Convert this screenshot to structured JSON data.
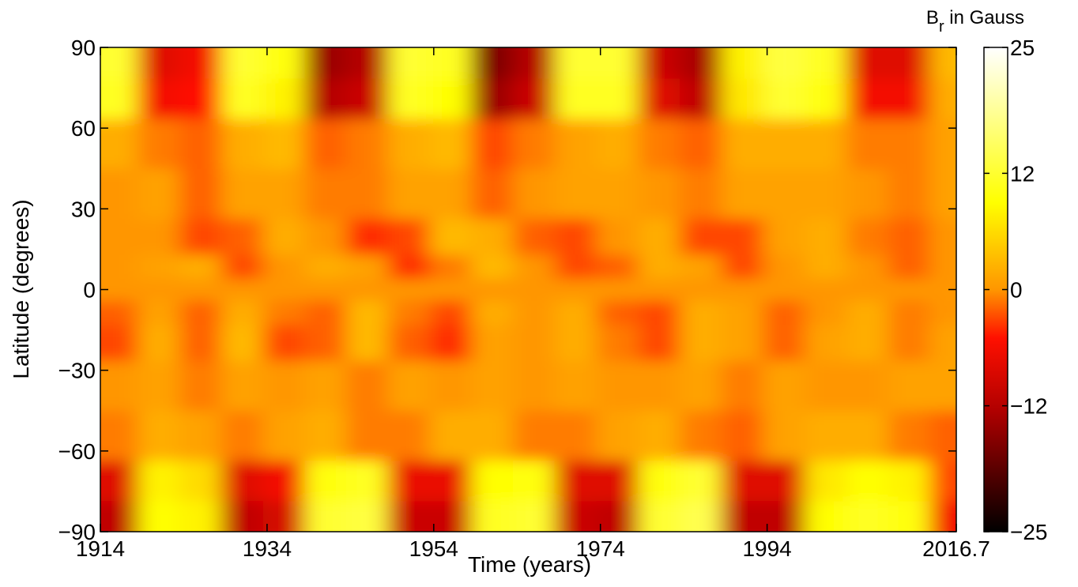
{
  "chart_data": {
    "type": "heatmap",
    "x_label": "Time (years)",
    "y_label": "Latitude (degrees)",
    "colorbar_label": {
      "base": "B",
      "sub": "r",
      "rest": " in Gauss"
    },
    "colormap": "hot",
    "x": [
      1916,
      1921,
      1926,
      1931,
      1936,
      1941,
      1946,
      1951,
      1956,
      1961,
      1966,
      1971,
      1976,
      1981,
      1986,
      1991,
      1996,
      2001,
      2006,
      2011,
      2016
    ],
    "y": [
      -85,
      -72,
      -55,
      -35,
      -18,
      -8,
      0,
      8,
      18,
      35,
      55,
      72,
      85
    ],
    "z": [
      [
        -11,
        9,
        8,
        -11,
        -9,
        12,
        13,
        -10,
        -10,
        11,
        12,
        -10,
        -11,
        12,
        14,
        -11,
        -11,
        9,
        11,
        10,
        -6
      ],
      [
        -8,
        8,
        6,
        -8,
        -6,
        10,
        11,
        -7,
        -7,
        9,
        10,
        -8,
        -8,
        10,
        12,
        -8,
        -8,
        7,
        9,
        8,
        -3
      ],
      [
        -1,
        2,
        1,
        -1,
        1,
        2,
        -1,
        -1,
        2,
        2,
        -1,
        -1,
        1,
        2,
        -1,
        -2,
        1,
        2,
        2,
        -1,
        -2
      ],
      [
        0,
        1,
        -1,
        1,
        0,
        1,
        -1,
        1,
        0,
        1,
        0,
        1,
        0,
        0,
        1,
        -1,
        1,
        0,
        0,
        1,
        1
      ],
      [
        -3,
        2,
        -2,
        3,
        -3,
        -2,
        3,
        -2,
        -4,
        1,
        0,
        2,
        -1,
        -3,
        2,
        1,
        -2,
        1,
        2,
        -1,
        1
      ],
      [
        -2,
        1,
        -2,
        2,
        -1,
        -2,
        3,
        -1,
        -3,
        2,
        0,
        2,
        -2,
        -3,
        2,
        1,
        -2,
        0,
        2,
        -1,
        0
      ],
      [
        0,
        0,
        0,
        0,
        0,
        0,
        0,
        0,
        0,
        0,
        0,
        0,
        0,
        0,
        0,
        0,
        0,
        0,
        0,
        0,
        0
      ],
      [
        0,
        1,
        2,
        -3,
        0,
        2,
        1,
        -4,
        -1,
        3,
        0,
        -3,
        -2,
        2,
        1,
        -3,
        0,
        2,
        0,
        -2,
        0
      ],
      [
        0,
        0,
        -3,
        -2,
        2,
        0,
        -4,
        -3,
        3,
        2,
        -2,
        -3,
        0,
        2,
        -3,
        -3,
        1,
        2,
        -1,
        -2,
        0
      ],
      [
        0,
        1,
        -2,
        1,
        1,
        -1,
        -1,
        1,
        1,
        -2,
        0,
        1,
        1,
        0,
        -1,
        1,
        1,
        1,
        0,
        -1,
        1
      ],
      [
        2,
        -1,
        -2,
        2,
        3,
        -2,
        -1,
        2,
        3,
        -3,
        -1,
        1,
        2,
        -1,
        -2,
        2,
        2,
        2,
        -1,
        -1,
        1
      ],
      [
        11,
        -6,
        -5,
        11,
        8,
        -12,
        -10,
        11,
        9,
        -14,
        -10,
        11,
        11,
        -8,
        -11,
        7,
        12,
        10,
        -6,
        -6,
        2
      ],
      [
        12,
        -8,
        -6,
        12,
        10,
        -14,
        -12,
        12,
        11,
        -16,
        -12,
        12,
        12,
        -10,
        -13,
        8,
        13,
        11,
        -8,
        -8,
        3
      ]
    ],
    "xlim": [
      1914,
      2016.7
    ],
    "xticks": [
      1914,
      1934,
      1954,
      1974,
      1994,
      2016.7
    ],
    "ylim": [
      -90,
      90
    ],
    "yticks": [
      {
        "value": -90,
        "label": "−90"
      },
      {
        "value": -60,
        "label": "−60"
      },
      {
        "value": -30,
        "label": "−30"
      },
      0,
      30,
      60,
      90
    ],
    "clim": [
      -25,
      25
    ],
    "cticks": [
      {
        "value": -25,
        "label": "−25"
      },
      {
        "value": -12,
        "label": "−12"
      },
      0,
      12,
      25
    ]
  }
}
